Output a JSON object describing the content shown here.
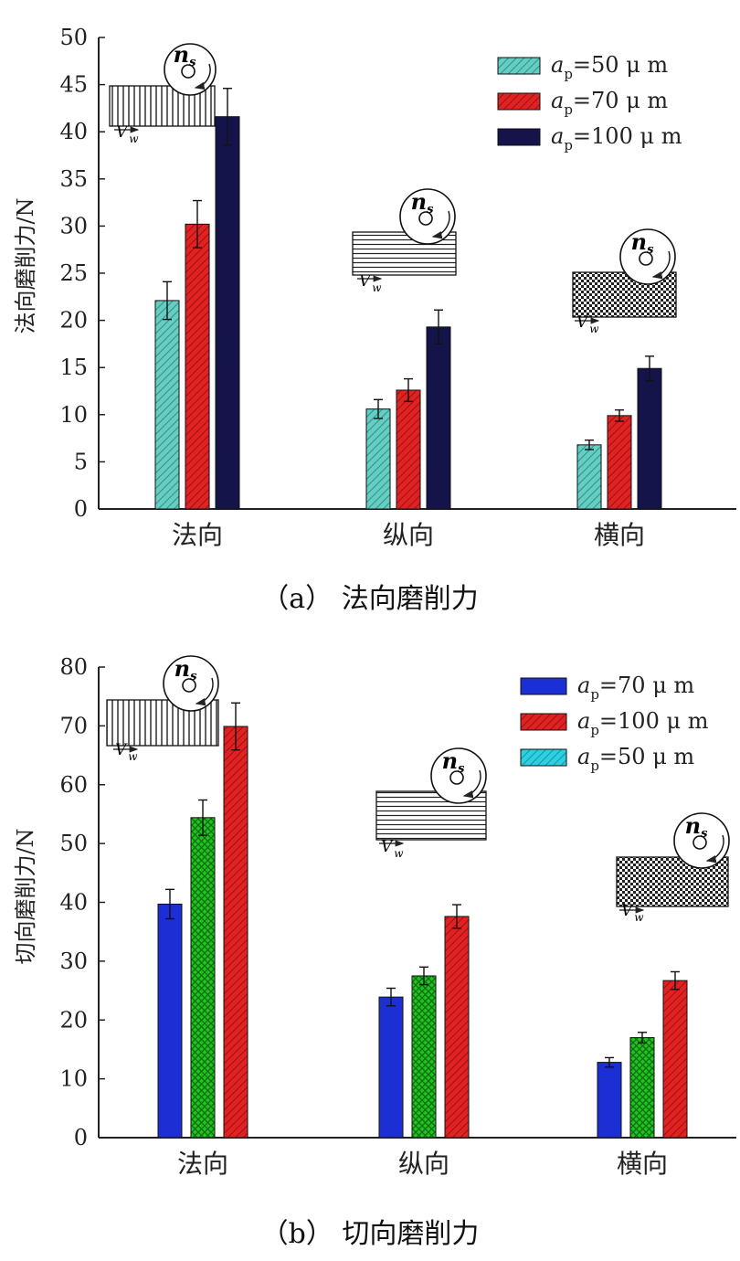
{
  "chart_data": [
    {
      "type": "bar",
      "caption": "（a） 法向磨削力",
      "ylabel": "法向磨削力/N",
      "ylim": [
        0,
        50
      ],
      "yticks": [
        0,
        5,
        10,
        15,
        20,
        25,
        30,
        35,
        40,
        45,
        50
      ],
      "categories": [
        "法向",
        "纵向",
        "横向"
      ],
      "series": [
        {
          "name": "ap=50 μm",
          "legend": {
            "sym": "a",
            "sub": "p",
            "rest": "=50 μ m"
          },
          "color": "#66cdc2",
          "pattern": "diag",
          "values": [
            22.1,
            10.6,
            6.8
          ],
          "errors": [
            2.0,
            1.0,
            0.5
          ]
        },
        {
          "name": "ap=70 μm",
          "legend": {
            "sym": "a",
            "sub": "p",
            "rest": "=70 μ m"
          },
          "color": "#e02222",
          "pattern": "diag",
          "values": [
            30.2,
            12.6,
            9.9
          ],
          "errors": [
            2.5,
            1.2,
            0.6
          ]
        },
        {
          "name": "ap=100 μm",
          "legend": {
            "sym": "a",
            "sub": "p",
            "rest": "=100 μ m"
          },
          "color": "#14144a",
          "pattern": "solid",
          "values": [
            41.6,
            19.3,
            14.9
          ],
          "errors": [
            3.0,
            1.8,
            1.3
          ]
        }
      ],
      "insets": [
        {
          "category": "法向",
          "stripes": "vertical"
        },
        {
          "category": "纵向",
          "stripes": "horizontal"
        },
        {
          "category": "横向",
          "stripes": "checker"
        }
      ],
      "inset_labels": {
        "wheel": "n",
        "wheel_sub": "s",
        "feed": "V",
        "feed_sub": "w"
      },
      "legend_position": "top-right"
    },
    {
      "type": "bar",
      "caption": "（b） 切向磨削力",
      "ylabel": "切向磨削力/N",
      "ylim": [
        0,
        80
      ],
      "yticks": [
        0,
        10,
        20,
        30,
        40,
        50,
        60,
        70,
        80
      ],
      "categories": [
        "法向",
        "纵向",
        "横向"
      ],
      "series": [
        {
          "name": "ap=70 μm",
          "legend": {
            "sym": "a",
            "sub": "p",
            "rest": "=70  μ m"
          },
          "color": "#1c2fd4",
          "pattern": "solid",
          "values": [
            39.7,
            23.9,
            12.8
          ],
          "errors": [
            2.5,
            1.5,
            0.8
          ]
        },
        {
          "name": "ap=100 μm",
          "legend": {
            "sym": "a",
            "sub": "p",
            "rest": "=100  μ m"
          },
          "color": "#e02222",
          "pattern": "diag",
          "values": [
            69.9,
            37.6,
            26.7
          ],
          "errors": [
            4.0,
            2.0,
            1.5
          ]
        },
        {
          "name": "ap=50 μm",
          "legend": {
            "sym": "a",
            "sub": "p",
            "rest": "=50  μ m"
          },
          "color": "#2cd0e0",
          "pattern": "diag",
          "values": [
            null,
            null,
            null
          ],
          "errors": [
            null,
            null,
            null
          ]
        }
      ],
      "extra_bars": {
        "color": "#22c222",
        "pattern": "cross",
        "values": [
          54.4,
          27.5,
          17.0
        ],
        "errors": [
          3.0,
          1.5,
          0.9
        ]
      },
      "bar_order": [
        "ap=70 μm",
        "extra",
        "ap=100 μm"
      ],
      "insets": [
        {
          "category": "法向",
          "stripes": "vertical"
        },
        {
          "category": "纵向",
          "stripes": "horizontal"
        },
        {
          "category": "横向",
          "stripes": "checker"
        }
      ],
      "inset_labels": {
        "wheel": "n",
        "wheel_sub": "s",
        "feed": "V",
        "feed_sub": "w"
      },
      "legend_position": "top-right"
    }
  ]
}
